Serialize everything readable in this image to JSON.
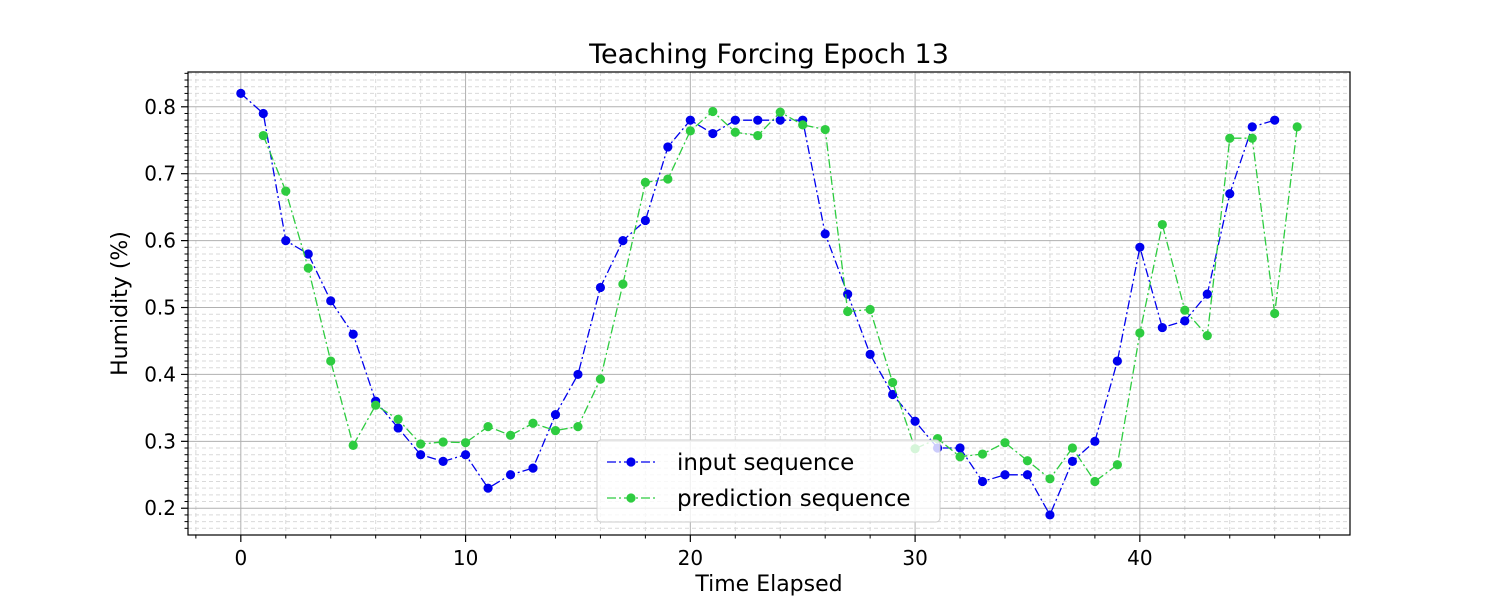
{
  "chart_data": {
    "type": "line",
    "title": "Teaching Forcing   Epoch 13",
    "xlabel": "Time Elapsed",
    "ylabel": "Humidity (%)",
    "xlim": [
      -2.35,
      49.35
    ],
    "ylim": [
      0.16,
      0.852
    ],
    "xticks": [
      0,
      10,
      20,
      30,
      40
    ],
    "yticks": [
      0.2,
      0.3,
      0.4,
      0.5,
      0.6,
      0.7,
      0.8
    ],
    "grid": true,
    "minor_grid": true,
    "legend_position": "lower-center",
    "series": [
      {
        "name": "input sequence",
        "color": "#0000ee",
        "line_style": "dash-dot",
        "marker": "circle",
        "x": [
          0,
          1,
          2,
          3,
          4,
          5,
          6,
          7,
          8,
          9,
          10,
          11,
          12,
          13,
          14,
          15,
          16,
          17,
          18,
          19,
          20,
          21,
          22,
          23,
          24,
          25,
          26,
          27,
          28,
          29,
          30,
          31,
          32,
          33,
          34,
          35,
          36,
          37,
          38,
          39,
          40,
          41,
          42,
          43,
          44,
          45,
          46
        ],
        "values": [
          0.82,
          0.79,
          0.6,
          0.58,
          0.51,
          0.46,
          0.36,
          0.32,
          0.28,
          0.27,
          0.28,
          0.23,
          0.25,
          0.26,
          0.34,
          0.4,
          0.53,
          0.6,
          0.63,
          0.74,
          0.78,
          0.76,
          0.78,
          0.78,
          0.78,
          0.78,
          0.61,
          0.52,
          0.43,
          0.37,
          0.33,
          0.29,
          0.29,
          0.24,
          0.25,
          0.25,
          0.19,
          0.27,
          0.3,
          0.42,
          0.59,
          0.47,
          0.48,
          0.52,
          0.67,
          0.77,
          0.78
        ]
      },
      {
        "name": "prediction sequence",
        "color": "#2ecc40",
        "line_style": "dash-dot",
        "marker": "circle",
        "x": [
          1,
          2,
          3,
          4,
          5,
          6,
          7,
          8,
          9,
          10,
          11,
          12,
          13,
          14,
          15,
          16,
          17,
          18,
          19,
          20,
          21,
          22,
          23,
          24,
          25,
          26,
          27,
          28,
          29,
          30,
          31,
          32,
          33,
          34,
          35,
          36,
          37,
          38,
          39,
          40,
          41,
          42,
          43,
          44,
          45,
          46,
          47
        ],
        "values": [
          0.757,
          0.674,
          0.559,
          0.42,
          0.294,
          0.354,
          0.333,
          0.296,
          0.299,
          0.298,
          0.322,
          0.309,
          0.327,
          0.316,
          0.322,
          0.393,
          0.535,
          0.687,
          0.692,
          0.764,
          0.793,
          0.762,
          0.757,
          0.792,
          0.773,
          0.766,
          0.494,
          0.497,
          0.388,
          0.289,
          0.304,
          0.277,
          0.281,
          0.298,
          0.271,
          0.244,
          0.29,
          0.24,
          0.265,
          0.462,
          0.624,
          0.496,
          0.458,
          0.753,
          0.753,
          0.491,
          0.77
        ]
      }
    ]
  }
}
